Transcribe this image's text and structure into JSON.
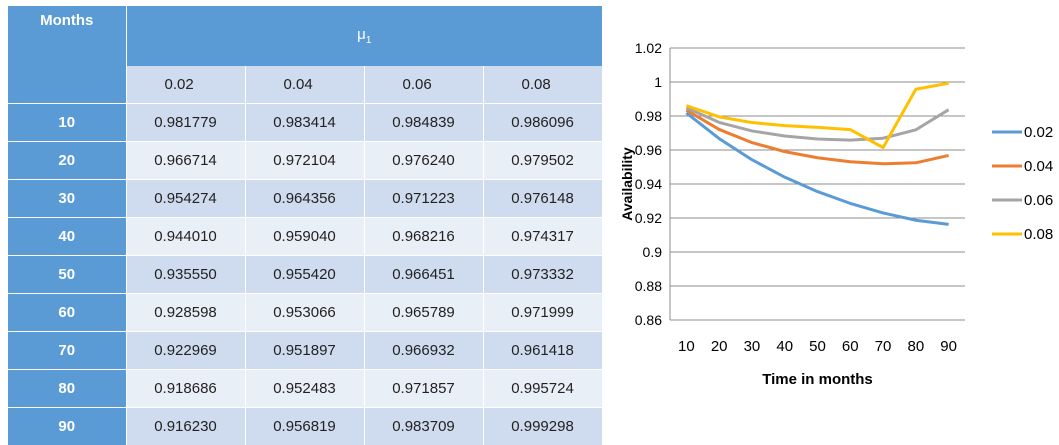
{
  "table": {
    "header_months": "Months",
    "header_mu_symbol": "μ",
    "header_mu_subscript": "1",
    "sub_headers": [
      "0.02",
      "0.04",
      "0.06",
      "0.08"
    ],
    "rows": [
      {
        "month": "10",
        "values": [
          "0.981779",
          "0.983414",
          "0.984839",
          "0.986096"
        ]
      },
      {
        "month": "20",
        "values": [
          "0.966714",
          "0.972104",
          "0.976240",
          "0.979502"
        ]
      },
      {
        "month": "30",
        "values": [
          "0.954274",
          "0.964356",
          "0.971223",
          "0.976148"
        ]
      },
      {
        "month": "40",
        "values": [
          "0.944010",
          "0.959040",
          "0.968216",
          "0.974317"
        ]
      },
      {
        "month": "50",
        "values": [
          "0.935550",
          "0.955420",
          "0.966451",
          "0.973332"
        ]
      },
      {
        "month": "60",
        "values": [
          "0.928598",
          "0.953066",
          "0.965789",
          "0.971999"
        ]
      },
      {
        "month": "70",
        "values": [
          "0.922969",
          "0.951897",
          "0.966932",
          "0.961418"
        ]
      },
      {
        "month": "80",
        "values": [
          "0.918686",
          "0.952483",
          "0.971857",
          "0.995724"
        ]
      },
      {
        "month": "90",
        "values": [
          "0.916230",
          "0.956819",
          "0.983709",
          "0.999298"
        ]
      }
    ]
  },
  "chart_data": {
    "type": "line",
    "xlabel": "Time in months",
    "ylabel": "Availability",
    "x": [
      10,
      20,
      30,
      40,
      50,
      60,
      70,
      80,
      90
    ],
    "x_tick_labels": [
      "10",
      "20",
      "30",
      "40",
      "50",
      "60",
      "70",
      "80",
      "90"
    ],
    "ylim": [
      0.86,
      1.02
    ],
    "y_ticks": [
      0.86,
      0.88,
      0.9,
      0.92,
      0.94,
      0.96,
      0.98,
      1.0,
      1.02
    ],
    "y_tick_labels": [
      "0.86",
      "0.88",
      "0.9",
      "0.92",
      "0.94",
      "0.96",
      "0.98",
      "1",
      "1.02"
    ],
    "grid": true,
    "legend_position": "right",
    "series": [
      {
        "name": "0.02",
        "color": "#5b9bd5",
        "values": [
          0.981779,
          0.966714,
          0.954274,
          0.94401,
          0.93555,
          0.928598,
          0.922969,
          0.918686,
          0.91623
        ]
      },
      {
        "name": "0.04",
        "color": "#ed7d31",
        "values": [
          0.983414,
          0.972104,
          0.964356,
          0.95904,
          0.95542,
          0.953066,
          0.951897,
          0.952483,
          0.956819
        ]
      },
      {
        "name": "0.06",
        "color": "#a5a5a5",
        "values": [
          0.984839,
          0.97624,
          0.971223,
          0.968216,
          0.966451,
          0.965789,
          0.966932,
          0.971857,
          0.983709
        ]
      },
      {
        "name": "0.08",
        "color": "#ffc000",
        "values": [
          0.986096,
          0.979502,
          0.976148,
          0.974317,
          0.973332,
          0.971999,
          0.961418,
          0.995724,
          0.999298
        ]
      }
    ]
  }
}
